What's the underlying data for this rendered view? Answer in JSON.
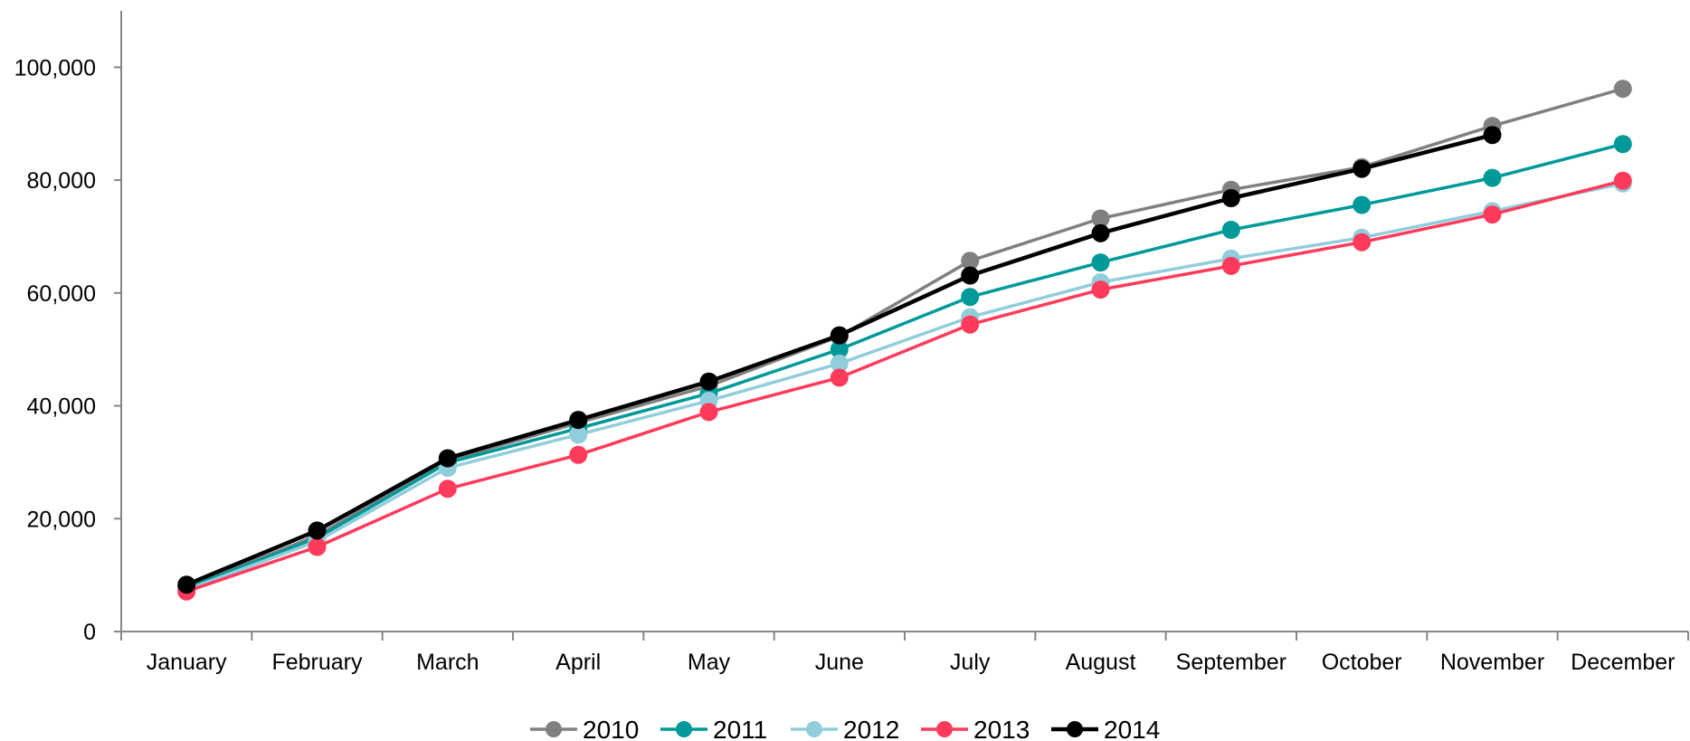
{
  "chart_data": {
    "type": "line",
    "title": "",
    "xlabel": "",
    "ylabel": "",
    "categories": [
      "January",
      "February",
      "March",
      "April",
      "May",
      "June",
      "July",
      "August",
      "September",
      "October",
      "November",
      "December"
    ],
    "ylim": [
      0,
      110000
    ],
    "yticks": [
      0,
      20000,
      40000,
      60000,
      80000,
      100000
    ],
    "ytick_labels": [
      "0",
      "20,000",
      "40,000",
      "60,000",
      "80,000",
      "100,000"
    ],
    "grid": false,
    "legend_position": "bottom",
    "series": [
      {
        "name": "2010",
        "color": "#808080",
        "values": [
          7800,
          17000,
          30300,
          37000,
          43500,
          52300,
          65700,
          73200,
          78300,
          82300,
          89600,
          96200
        ]
      },
      {
        "name": "2011",
        "color": "#009999",
        "values": [
          7700,
          16600,
          29900,
          36000,
          42200,
          50000,
          59300,
          65400,
          71200,
          75600,
          80400,
          86400
        ]
      },
      {
        "name": "2012",
        "color": "#92CDDC",
        "values": [
          7400,
          16000,
          29000,
          34900,
          40900,
          47500,
          55700,
          61900,
          66100,
          69800,
          74500,
          79400
        ]
      },
      {
        "name": "2013",
        "color": "#FF3B5C",
        "values": [
          7100,
          15000,
          25300,
          31300,
          38900,
          45000,
          54400,
          60600,
          64800,
          69000,
          73900,
          79900
        ]
      },
      {
        "name": "2014",
        "color": "#000000",
        "values": [
          8300,
          17900,
          30700,
          37500,
          44300,
          52500,
          63100,
          70600,
          76800,
          82000,
          88000,
          null
        ]
      }
    ]
  }
}
